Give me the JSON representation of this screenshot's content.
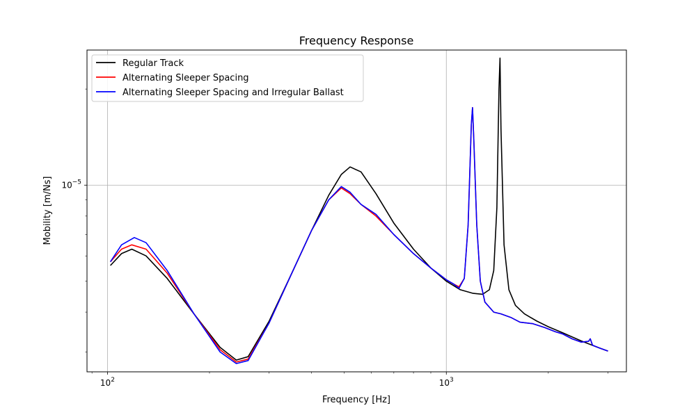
{
  "chart_data": {
    "type": "line",
    "title": "Frequency Response",
    "xlabel": "Frequency [Hz]",
    "ylabel": "Mobility [m/Ns]",
    "xscale": "log",
    "yscale": "log",
    "xlim": [
      87,
      3400
    ],
    "ylim": [
      2.6e-06,
      2.65e-05
    ],
    "grid": "major",
    "legend_position": "top-left",
    "x_ticks": [
      {
        "value": 100,
        "base": "10",
        "exp": "2"
      },
      {
        "value": 1000,
        "base": "10",
        "exp": "3"
      }
    ],
    "y_ticks": [
      {
        "value": 1e-05,
        "base": "10",
        "exp": "−5"
      }
    ],
    "series": [
      {
        "name": "Regular Track",
        "color": "#000000",
        "points": [
          [
            102,
            5.6e-06
          ],
          [
            110,
            6.1e-06
          ],
          [
            118,
            6.3e-06
          ],
          [
            130,
            6e-06
          ],
          [
            150,
            5.1e-06
          ],
          [
            180,
            3.95e-06
          ],
          [
            215,
            3.1e-06
          ],
          [
            240,
            2.83e-06
          ],
          [
            260,
            2.9e-06
          ],
          [
            300,
            3.75e-06
          ],
          [
            350,
            5.3e-06
          ],
          [
            400,
            7.2e-06
          ],
          [
            450,
            9.3e-06
          ],
          [
            490,
            1.08e-05
          ],
          [
            520,
            1.14e-05
          ],
          [
            560,
            1.1e-05
          ],
          [
            620,
            9.4e-06
          ],
          [
            700,
            7.6e-06
          ],
          [
            800,
            6.3e-06
          ],
          [
            900,
            5.5e-06
          ],
          [
            1000,
            5e-06
          ],
          [
            1100,
            4.7e-06
          ],
          [
            1200,
            4.58e-06
          ],
          [
            1280,
            4.55e-06
          ],
          [
            1340,
            4.7e-06
          ],
          [
            1380,
            5.4e-06
          ],
          [
            1410,
            8.5e-06
          ],
          [
            1430,
            2e-05
          ],
          [
            1440,
            2.5e-05
          ],
          [
            1450,
            1.5e-05
          ],
          [
            1480,
            6.5e-06
          ],
          [
            1530,
            4.7e-06
          ],
          [
            1600,
            4.2e-06
          ],
          [
            1700,
            3.95e-06
          ],
          [
            1850,
            3.75e-06
          ],
          [
            2000,
            3.6e-06
          ],
          [
            2200,
            3.45e-06
          ],
          [
            2500,
            3.25e-06
          ],
          [
            2800,
            3.1e-06
          ],
          [
            3000,
            3.02e-06
          ]
        ]
      },
      {
        "name": "Alternating Sleeper Spacing",
        "color": "#ff0000",
        "points": [
          [
            102,
            5.75e-06
          ],
          [
            110,
            6.3e-06
          ],
          [
            118,
            6.5e-06
          ],
          [
            130,
            6.3e-06
          ],
          [
            150,
            5.3e-06
          ],
          [
            180,
            3.95e-06
          ],
          [
            215,
            3.05e-06
          ],
          [
            240,
            2.79e-06
          ],
          [
            260,
            2.85e-06
          ],
          [
            300,
            3.7e-06
          ],
          [
            350,
            5.3e-06
          ],
          [
            400,
            7.2e-06
          ],
          [
            450,
            9e-06
          ],
          [
            490,
            9.8e-06
          ],
          [
            520,
            9.4e-06
          ],
          [
            560,
            8.7e-06
          ],
          [
            620,
            8e-06
          ],
          [
            700,
            7e-06
          ],
          [
            800,
            6.1e-06
          ],
          [
            900,
            5.5e-06
          ],
          [
            1000,
            5.05e-06
          ],
          [
            1050,
            4.9e-06
          ],
          [
            1090,
            4.8e-06
          ],
          [
            1130,
            5.1e-06
          ],
          [
            1160,
            7.5e-06
          ],
          [
            1185,
            1.55e-05
          ],
          [
            1195,
            1.75e-05
          ],
          [
            1205,
            1.4e-05
          ],
          [
            1230,
            7.5e-06
          ],
          [
            1260,
            5e-06
          ],
          [
            1300,
            4.3e-06
          ],
          [
            1380,
            4e-06
          ],
          [
            1450,
            3.95e-06
          ],
          [
            1550,
            3.85e-06
          ],
          [
            1650,
            3.72e-06
          ],
          [
            1800,
            3.68e-06
          ],
          [
            1950,
            3.58e-06
          ],
          [
            2100,
            3.47e-06
          ],
          [
            2200,
            3.42e-06
          ],
          [
            2350,
            3.3e-06
          ],
          [
            2500,
            3.22e-06
          ],
          [
            2630,
            3.24e-06
          ],
          [
            2660,
            3.3e-06
          ],
          [
            2700,
            3.15e-06
          ],
          [
            2850,
            3.08e-06
          ],
          [
            3000,
            3.02e-06
          ]
        ]
      },
      {
        "name": "Alternating Sleeper Spacing and Irregular Ballast",
        "color": "#0000ff",
        "points": [
          [
            102,
            5.75e-06
          ],
          [
            110,
            6.5e-06
          ],
          [
            120,
            6.85e-06
          ],
          [
            130,
            6.6e-06
          ],
          [
            150,
            5.4e-06
          ],
          [
            180,
            3.95e-06
          ],
          [
            215,
            3e-06
          ],
          [
            240,
            2.76e-06
          ],
          [
            260,
            2.82e-06
          ],
          [
            300,
            3.7e-06
          ],
          [
            350,
            5.3e-06
          ],
          [
            400,
            7.2e-06
          ],
          [
            450,
            9e-06
          ],
          [
            490,
            9.9e-06
          ],
          [
            520,
            9.5e-06
          ],
          [
            560,
            8.7e-06
          ],
          [
            620,
            8.1e-06
          ],
          [
            700,
            7e-06
          ],
          [
            800,
            6.1e-06
          ],
          [
            900,
            5.5e-06
          ],
          [
            1000,
            5.05e-06
          ],
          [
            1050,
            4.9e-06
          ],
          [
            1090,
            4.75e-06
          ],
          [
            1130,
            5.1e-06
          ],
          [
            1160,
            7.5e-06
          ],
          [
            1185,
            1.55e-05
          ],
          [
            1195,
            1.75e-05
          ],
          [
            1205,
            1.4e-05
          ],
          [
            1230,
            7.5e-06
          ],
          [
            1260,
            5e-06
          ],
          [
            1300,
            4.3e-06
          ],
          [
            1380,
            4e-06
          ],
          [
            1450,
            3.95e-06
          ],
          [
            1550,
            3.85e-06
          ],
          [
            1650,
            3.72e-06
          ],
          [
            1800,
            3.68e-06
          ],
          [
            1950,
            3.58e-06
          ],
          [
            2100,
            3.47e-06
          ],
          [
            2200,
            3.42e-06
          ],
          [
            2350,
            3.3e-06
          ],
          [
            2500,
            3.22e-06
          ],
          [
            2630,
            3.24e-06
          ],
          [
            2660,
            3.3e-06
          ],
          [
            2700,
            3.15e-06
          ],
          [
            2850,
            3.08e-06
          ],
          [
            3000,
            3.02e-06
          ]
        ]
      }
    ]
  }
}
